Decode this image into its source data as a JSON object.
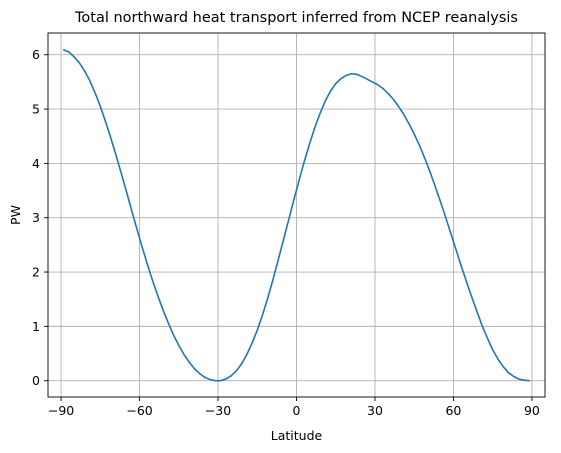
{
  "chart_data": {
    "type": "line",
    "title": "Total northward heat transport inferred from NCEP reanalysis",
    "xlabel": "Latitude",
    "ylabel": "PW",
    "xlim": [
      -95,
      95
    ],
    "ylim": [
      -0.3,
      6.4
    ],
    "xticks": [
      -90,
      -60,
      -30,
      0,
      30,
      60,
      90
    ],
    "xtick_labels": [
      "−90",
      "−60",
      "−30",
      "0",
      "30",
      "60",
      "90"
    ],
    "yticks": [
      0,
      1,
      2,
      3,
      4,
      5,
      6
    ],
    "ytick_labels": [
      "0",
      "1",
      "2",
      "3",
      "4",
      "5",
      "6"
    ],
    "grid": true,
    "series": [
      {
        "color": "#1f77b4",
        "x": [
          -89,
          -87,
          -85,
          -83,
          -81,
          -79,
          -77,
          -75,
          -73,
          -71,
          -69,
          -67,
          -65,
          -63,
          -61,
          -59,
          -57,
          -55,
          -53,
          -51,
          -49,
          -47,
          -45,
          -43,
          -41,
          -39,
          -37,
          -35,
          -33,
          -31,
          -29,
          -27,
          -25,
          -23,
          -21,
          -19,
          -17,
          -15,
          -13,
          -11,
          -9,
          -7,
          -5,
          -3,
          -1,
          1,
          3,
          5,
          7,
          9,
          11,
          13,
          15,
          17,
          19,
          21,
          23,
          25,
          27,
          29,
          31,
          33,
          35,
          37,
          39,
          41,
          43,
          45,
          47,
          49,
          51,
          53,
          55,
          57,
          59,
          61,
          63,
          65,
          67,
          69,
          71,
          73,
          75,
          77,
          79,
          81,
          83,
          85,
          87,
          89
        ],
        "y": [
          6.09,
          6.05,
          5.96,
          5.85,
          5.7,
          5.52,
          5.3,
          5.05,
          4.77,
          4.47,
          4.15,
          3.82,
          3.48,
          3.13,
          2.79,
          2.46,
          2.14,
          1.84,
          1.56,
          1.3,
          1.06,
          0.84,
          0.65,
          0.48,
          0.34,
          0.22,
          0.13,
          0.06,
          0.02,
          0.0,
          0.0,
          0.03,
          0.09,
          0.18,
          0.31,
          0.48,
          0.69,
          0.93,
          1.21,
          1.52,
          1.86,
          2.22,
          2.59,
          2.96,
          3.33,
          3.69,
          4.04,
          4.36,
          4.66,
          4.92,
          5.15,
          5.33,
          5.47,
          5.56,
          5.62,
          5.65,
          5.64,
          5.6,
          5.55,
          5.5,
          5.45,
          5.38,
          5.29,
          5.18,
          5.05,
          4.9,
          4.73,
          4.54,
          4.33,
          4.1,
          3.85,
          3.58,
          3.3,
          3.01,
          2.71,
          2.41,
          2.11,
          1.82,
          1.54,
          1.27,
          1.01,
          0.78,
          0.57,
          0.4,
          0.26,
          0.15,
          0.08,
          0.03,
          0.01,
          0.0
        ]
      }
    ]
  }
}
